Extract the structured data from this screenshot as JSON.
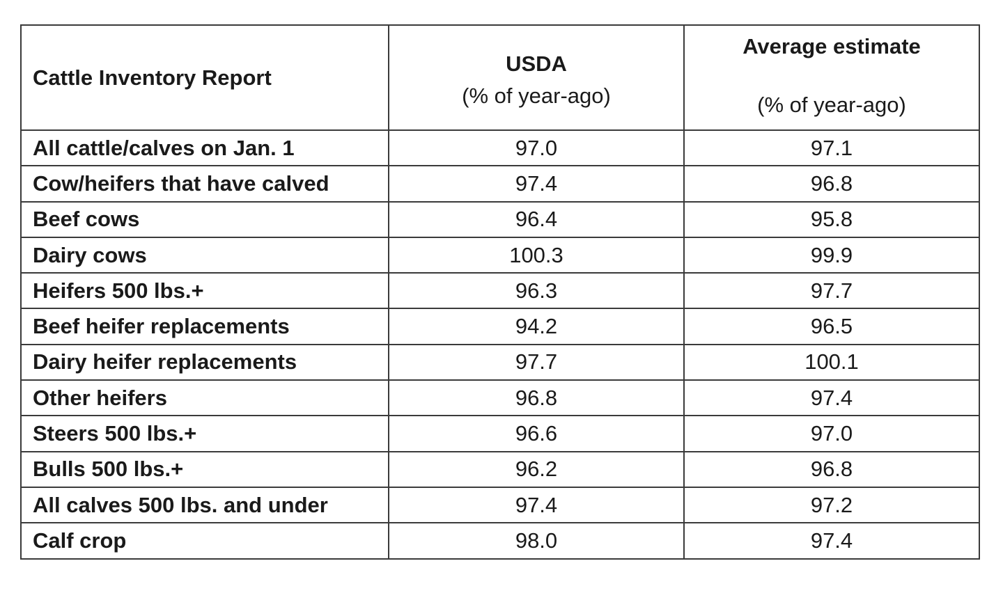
{
  "table": {
    "header": {
      "label": "Cattle Inventory Report",
      "usda_title": "USDA",
      "usda_sub": "(% of year-ago)",
      "avg_title": "Average estimate",
      "avg_sub": "(% of year-ago)"
    },
    "rows": [
      {
        "label": "All cattle/calves on Jan. 1",
        "usda": "97.0",
        "avg": "97.1"
      },
      {
        "label": "Cow/heifers that have calved",
        "usda": "97.4",
        "avg": "96.8"
      },
      {
        "label": "Beef cows",
        "usda": "96.4",
        "avg": "95.8"
      },
      {
        "label": "Dairy cows",
        "usda": "100.3",
        "avg": "99.9"
      },
      {
        "label": "Heifers 500 lbs.+",
        "usda": "96.3",
        "avg": "97.7"
      },
      {
        "label": "Beef heifer replacements",
        "usda": "94.2",
        "avg": "96.5"
      },
      {
        "label": "Dairy heifer replacements",
        "usda": "97.7",
        "avg": "100.1"
      },
      {
        "label": "Other heifers",
        "usda": "96.8",
        "avg": "97.4"
      },
      {
        "label": "Steers 500 lbs.+",
        "usda": "96.6",
        "avg": "97.0"
      },
      {
        "label": "Bulls 500 lbs.+",
        "usda": "96.2",
        "avg": "96.8"
      },
      {
        "label": "All calves 500 lbs. and under",
        "usda": "97.4",
        "avg": "97.2"
      },
      {
        "label": "Calf crop",
        "usda": "98.0",
        "avg": "97.4"
      }
    ]
  }
}
